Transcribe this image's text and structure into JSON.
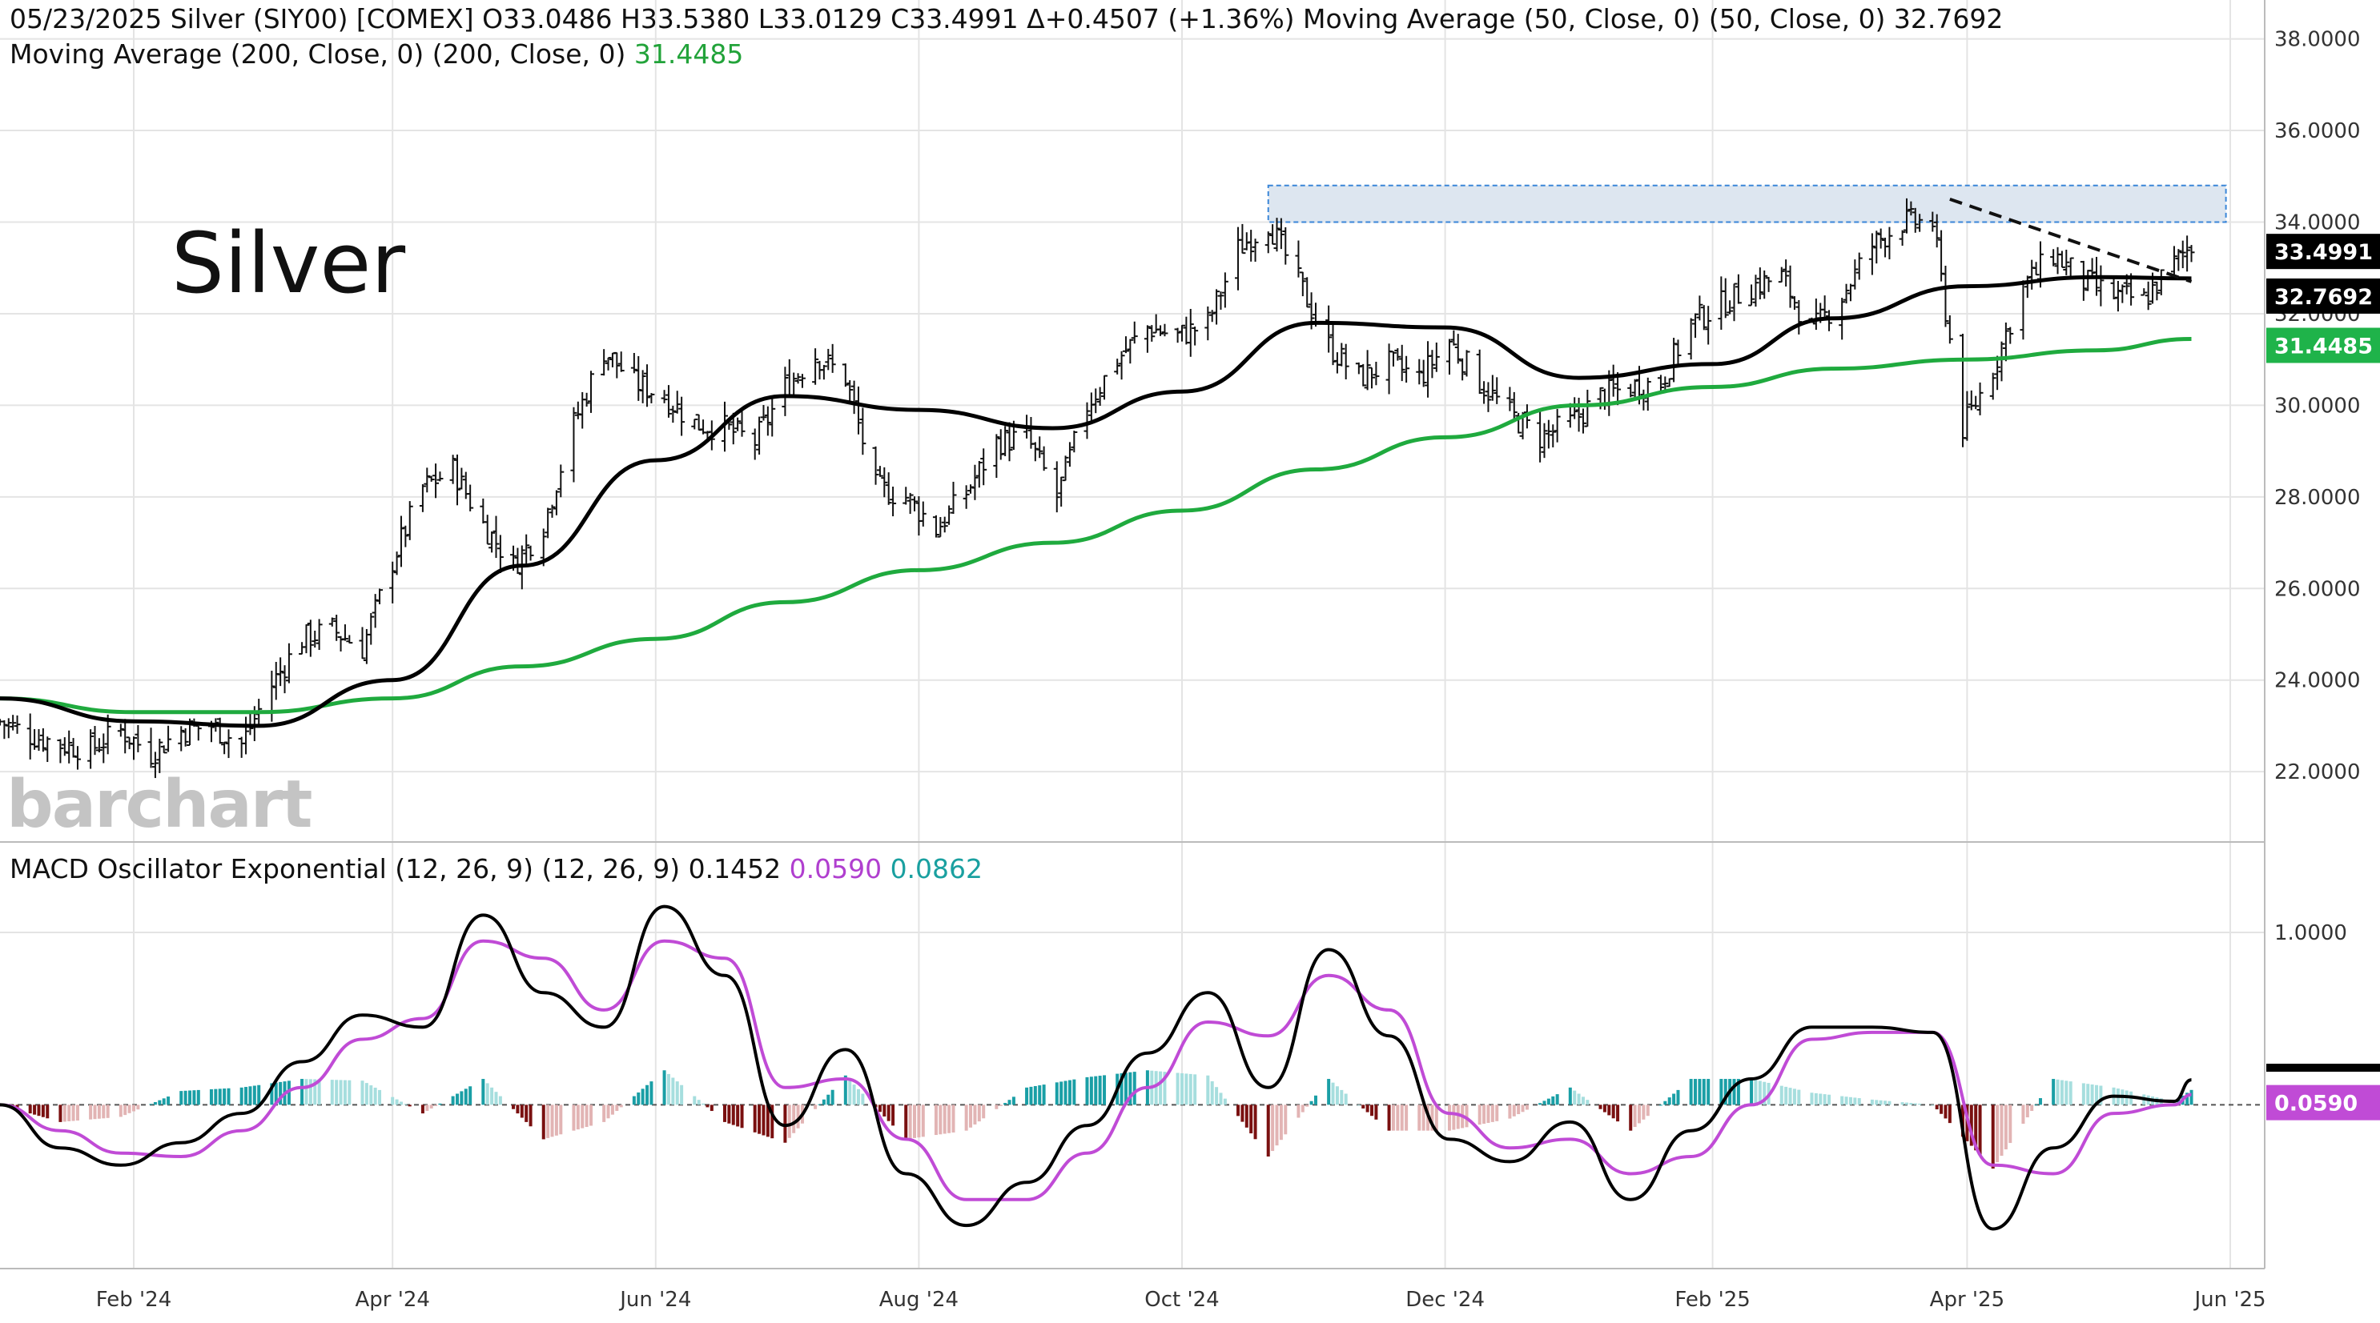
{
  "header": {
    "line1_main": "05/23/2025 Silver (SIY00) [COMEX] O33.0486 H33.5380 L33.0129 C33.4991 Δ+0.4507 (+1.36%) Moving Average (50, Close, 0)  (50, Close, 0) 32.7692",
    "line2_main": "Moving Average (200, Close, 0)  (200, Close, 0) ",
    "line2_value": "31.4485",
    "macd_main": "MACD Oscillator Exponential (12, 26, 9)  (12, 26, 9) 0.1452 ",
    "macd_signal": "0.0590",
    "macd_hist": "0.0862"
  },
  "annotation_label": "Silver",
  "watermark": "barchart",
  "colors": {
    "price_bar": "#111111",
    "ma50": "#000000",
    "ma200": "#1faa3e",
    "macd_line": "#000000",
    "signal_line": "#c04bd6",
    "hist_pos_strong": "#1a9fa6",
    "hist_pos_weak": "#a6dede",
    "hist_neg_strong": "#7a1010",
    "hist_neg_weak": "#e2b4b4",
    "resistance_fill": "#dde6f0",
    "resistance_border": "#3a86d8",
    "grid": "#e4e4e4"
  },
  "badges": {
    "close": "33.4991",
    "ma50": "32.7692",
    "ma200": "31.4485",
    "macd": "0.0590"
  },
  "chart_data": [
    {
      "type": "line",
      "subtype": "ohlc-bars",
      "title": "05/23/2025 Silver (SIY00) [COMEX]",
      "y_ticks": [
        "22.0000",
        "24.0000",
        "26.0000",
        "28.0000",
        "30.0000",
        "32.0000",
        "34.0000",
        "36.0000",
        "38.0000"
      ],
      "ylim": [
        20.5,
        38.5
      ],
      "x_ticks": [
        "Feb '24",
        "Apr '24",
        "Jun '24",
        "Aug '24",
        "Oct '24",
        "Dec '24",
        "Feb '25",
        "Apr '25",
        "Jun '25"
      ],
      "x_range": [
        "2024-01-01",
        "2025-06-01"
      ],
      "grid": true,
      "ohlc": {
        "last": {
          "date": "2025-05-23",
          "open": 33.0486,
          "high": 33.538,
          "low": 33.0129,
          "close": 33.4991,
          "change": 0.4507,
          "change_pct": 1.36
        }
      },
      "series": [
        {
          "name": "Close",
          "x": [
            "2024-01-01",
            "2024-01-08",
            "2024-01-15",
            "2024-01-22",
            "2024-01-29",
            "2024-02-05",
            "2024-02-12",
            "2024-02-19",
            "2024-02-26",
            "2024-03-04",
            "2024-03-11",
            "2024-03-18",
            "2024-03-25",
            "2024-04-01",
            "2024-04-08",
            "2024-04-15",
            "2024-04-22",
            "2024-04-29",
            "2024-05-06",
            "2024-05-13",
            "2024-05-20",
            "2024-05-27",
            "2024-06-03",
            "2024-06-10",
            "2024-06-17",
            "2024-06-24",
            "2024-07-01",
            "2024-07-08",
            "2024-07-15",
            "2024-07-22",
            "2024-07-29",
            "2024-08-05",
            "2024-08-12",
            "2024-08-19",
            "2024-08-26",
            "2024-09-02",
            "2024-09-09",
            "2024-09-16",
            "2024-09-23",
            "2024-09-30",
            "2024-10-07",
            "2024-10-14",
            "2024-10-21",
            "2024-10-28",
            "2024-11-04",
            "2024-11-11",
            "2024-11-18",
            "2024-11-25",
            "2024-12-02",
            "2024-12-09",
            "2024-12-16",
            "2024-12-23",
            "2024-12-30",
            "2025-01-06",
            "2025-01-13",
            "2025-01-20",
            "2025-01-27",
            "2025-02-03",
            "2025-02-10",
            "2025-02-17",
            "2025-02-24",
            "2025-03-03",
            "2025-03-10",
            "2025-03-17",
            "2025-03-24",
            "2025-03-31",
            "2025-04-07",
            "2025-04-14",
            "2025-04-21",
            "2025-04-28",
            "2025-05-05",
            "2025-05-12",
            "2025-05-19",
            "2025-05-23"
          ],
          "values": [
            23.1,
            22.8,
            22.6,
            22.5,
            22.9,
            22.4,
            22.9,
            23.0,
            22.6,
            23.9,
            24.9,
            25.1,
            24.7,
            26.6,
            28.2,
            28.6,
            27.4,
            26.5,
            27.4,
            29.6,
            31.2,
            30.5,
            30.2,
            29.6,
            29.5,
            29.2,
            30.4,
            31.1,
            30.6,
            28.2,
            28.0,
            27.3,
            28.1,
            29.2,
            29.3,
            28.0,
            30.0,
            31.0,
            31.7,
            31.5,
            31.8,
            33.4,
            34.0,
            32.7,
            31.3,
            30.6,
            30.9,
            30.6,
            31.4,
            30.5,
            29.8,
            29.3,
            29.6,
            30.2,
            30.4,
            30.5,
            31.8,
            32.2,
            32.6,
            32.8,
            31.6,
            32.4,
            33.5,
            34.0,
            34.0,
            29.5,
            30.8,
            32.6,
            33.3,
            32.7,
            32.4,
            32.3,
            33.1,
            33.4991
          ]
        },
        {
          "name": "Moving Average (50, Close, 0)",
          "x": [
            "2024-01-01",
            "2024-02-01",
            "2024-03-01",
            "2024-04-01",
            "2024-05-01",
            "2024-06-01",
            "2024-07-01",
            "2024-08-01",
            "2024-09-01",
            "2024-10-01",
            "2024-11-01",
            "2024-12-01",
            "2025-01-01",
            "2025-02-01",
            "2025-03-01",
            "2025-04-01",
            "2025-05-01",
            "2025-05-23"
          ],
          "values": [
            23.6,
            23.1,
            23.0,
            24.0,
            26.5,
            28.8,
            30.2,
            29.9,
            29.5,
            30.3,
            31.8,
            31.7,
            30.6,
            30.9,
            31.9,
            32.6,
            32.8,
            32.7692
          ]
        },
        {
          "name": "Moving Average (200, Close, 0)",
          "x": [
            "2024-01-01",
            "2024-02-01",
            "2024-03-01",
            "2024-04-01",
            "2024-05-01",
            "2024-06-01",
            "2024-07-01",
            "2024-08-01",
            "2024-09-01",
            "2024-10-01",
            "2024-11-01",
            "2024-12-01",
            "2025-01-01",
            "2025-02-01",
            "2025-03-01",
            "2025-04-01",
            "2025-05-01",
            "2025-05-23"
          ],
          "values": [
            23.6,
            23.3,
            23.3,
            23.6,
            24.3,
            24.9,
            25.7,
            26.4,
            27.0,
            27.7,
            28.6,
            29.3,
            30.0,
            30.4,
            30.8,
            31.0,
            31.2,
            31.4485
          ]
        }
      ],
      "resistance_zone": [
        34.0,
        34.8
      ],
      "trendline": [
        {
          "x": "2025-03-28",
          "y": 34.5
        },
        {
          "x": "2025-05-23",
          "y": 32.7
        }
      ]
    },
    {
      "type": "line",
      "title": "MACD Oscillator Exponential (12, 26, 9)",
      "y_ticks": [
        "1.0000"
      ],
      "ylim": [
        -0.95,
        1.45
      ],
      "grid": true,
      "values_last": {
        "macd": 0.1452,
        "signal": 0.059,
        "histogram": 0.0862
      },
      "series": [
        {
          "name": "MACD",
          "x": [
            "2024-01-01",
            "2024-01-15",
            "2024-01-29",
            "2024-02-12",
            "2024-02-26",
            "2024-03-11",
            "2024-03-25",
            "2024-04-08",
            "2024-04-22",
            "2024-05-06",
            "2024-05-20",
            "2024-06-03",
            "2024-06-17",
            "2024-07-01",
            "2024-07-15",
            "2024-07-29",
            "2024-08-12",
            "2024-08-26",
            "2024-09-09",
            "2024-09-23",
            "2024-10-07",
            "2024-10-21",
            "2024-11-04",
            "2024-11-18",
            "2024-12-02",
            "2024-12-16",
            "2024-12-30",
            "2025-01-13",
            "2025-01-27",
            "2025-02-10",
            "2025-02-24",
            "2025-03-10",
            "2025-03-24",
            "2025-04-07",
            "2025-04-21",
            "2025-05-05",
            "2025-05-19",
            "2025-05-23"
          ],
          "values": [
            0.0,
            -0.25,
            -0.35,
            -0.22,
            -0.05,
            0.25,
            0.52,
            0.45,
            1.1,
            0.65,
            0.45,
            1.15,
            0.75,
            -0.12,
            0.32,
            -0.4,
            -0.7,
            -0.45,
            -0.12,
            0.3,
            0.65,
            0.1,
            0.9,
            0.4,
            -0.2,
            -0.33,
            -0.1,
            -0.55,
            -0.15,
            0.15,
            0.45,
            0.45,
            0.42,
            -0.72,
            -0.25,
            0.05,
            0.02,
            0.1452
          ]
        },
        {
          "name": "Signal",
          "x": [
            "2024-01-01",
            "2024-01-15",
            "2024-01-29",
            "2024-02-12",
            "2024-02-26",
            "2024-03-11",
            "2024-03-25",
            "2024-04-08",
            "2024-04-22",
            "2024-05-06",
            "2024-05-20",
            "2024-06-03",
            "2024-06-17",
            "2024-07-01",
            "2024-07-15",
            "2024-07-29",
            "2024-08-12",
            "2024-08-26",
            "2024-09-09",
            "2024-09-23",
            "2024-10-07",
            "2024-10-21",
            "2024-11-04",
            "2024-11-18",
            "2024-12-02",
            "2024-12-16",
            "2024-12-30",
            "2025-01-13",
            "2025-01-27",
            "2025-02-10",
            "2025-02-24",
            "2025-03-10",
            "2025-03-24",
            "2025-04-07",
            "2025-04-21",
            "2025-05-05",
            "2025-05-19",
            "2025-05-23"
          ],
          "values": [
            0.0,
            -0.15,
            -0.28,
            -0.3,
            -0.15,
            0.1,
            0.38,
            0.5,
            0.95,
            0.85,
            0.55,
            0.95,
            0.85,
            0.1,
            0.15,
            -0.2,
            -0.55,
            -0.55,
            -0.28,
            0.1,
            0.48,
            0.4,
            0.75,
            0.55,
            -0.05,
            -0.25,
            -0.2,
            -0.4,
            -0.3,
            0.0,
            0.38,
            0.42,
            0.42,
            -0.35,
            -0.4,
            -0.05,
            0.0,
            0.059
          ]
        },
        {
          "name": "Histogram",
          "x": [
            "2024-01-01",
            "2024-01-15",
            "2024-01-29",
            "2024-02-12",
            "2024-02-26",
            "2024-03-11",
            "2024-03-25",
            "2024-04-08",
            "2024-04-22",
            "2024-05-06",
            "2024-05-20",
            "2024-06-03",
            "2024-06-17",
            "2024-07-01",
            "2024-07-15",
            "2024-07-29",
            "2024-08-12",
            "2024-08-26",
            "2024-09-09",
            "2024-09-23",
            "2024-10-07",
            "2024-10-21",
            "2024-11-04",
            "2024-11-18",
            "2024-12-02",
            "2024-12-16",
            "2024-12-30",
            "2025-01-13",
            "2025-01-27",
            "2025-02-10",
            "2025-02-24",
            "2025-03-10",
            "2025-03-24",
            "2025-04-07",
            "2025-04-21",
            "2025-05-05",
            "2025-05-19",
            "2025-05-23"
          ],
          "values": [
            0.0,
            -0.1,
            -0.07,
            0.08,
            0.1,
            0.15,
            0.14,
            -0.05,
            0.15,
            -0.2,
            -0.1,
            0.2,
            -0.1,
            -0.22,
            0.17,
            -0.2,
            -0.15,
            0.1,
            0.16,
            0.2,
            0.17,
            -0.3,
            0.15,
            -0.15,
            -0.15,
            -0.08,
            0.1,
            -0.15,
            0.15,
            0.15,
            0.07,
            0.03,
            0.0,
            -0.37,
            0.15,
            0.1,
            0.02,
            0.0862
          ]
        }
      ]
    }
  ]
}
